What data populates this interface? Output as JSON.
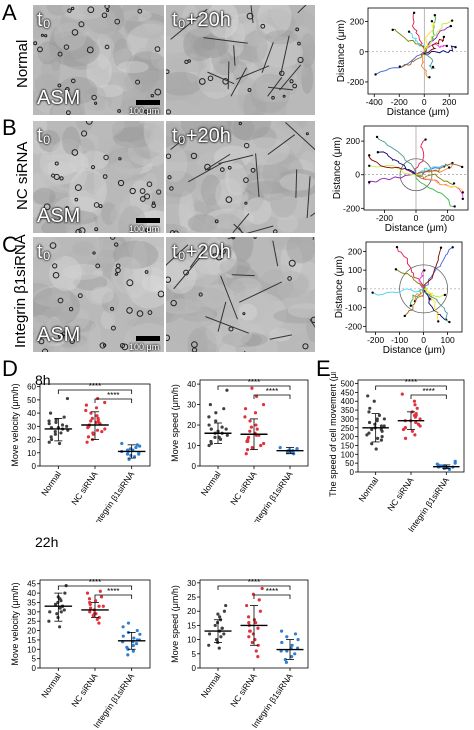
{
  "panels": {
    "A": {
      "letter": "A",
      "condition": "Normal",
      "t0": "t₀",
      "t20": "t₀+20h",
      "cell": "ASM",
      "scale": "100 μm"
    },
    "B": {
      "letter": "B",
      "condition": "NC siRNA",
      "t0": "t₀",
      "t20": "t₀+20h",
      "cell": "ASM",
      "scale": "100 μm"
    },
    "C": {
      "letter": "C",
      "condition": "Integrin β1siRNA",
      "t0": "t₀",
      "t20": "t₀+20h",
      "cell": "ASM",
      "scale": "100 μm"
    },
    "D": {
      "letter": "D",
      "time1": "8h",
      "time2": "22h"
    },
    "E": {
      "letter": "E"
    }
  },
  "significance": "****",
  "colors": {
    "normal": "#404040",
    "nc": "#e0323c",
    "integrin": "#2f7fd0",
    "mean": "#000000"
  },
  "chart_data": [
    {
      "id": "track-A",
      "type": "scatter",
      "xlabel": "Distance (μm)",
      "ylabel": "Distance (μm)",
      "xticks": [
        -400,
        -200,
        0,
        200
      ],
      "yticks": [
        -200,
        0,
        200
      ],
      "xlim": [
        -450,
        350
      ],
      "ylim": [
        -280,
        290
      ]
    },
    {
      "id": "track-B",
      "type": "scatter",
      "xlabel": "Distance (μm)",
      "ylabel": "Distance (μm)",
      "xticks": [
        -200,
        0,
        200
      ],
      "yticks": [
        -200,
        0,
        200
      ],
      "xlim": [
        -330,
        330
      ],
      "ylim": [
        -210,
        290
      ]
    },
    {
      "id": "track-C",
      "type": "scatter",
      "xlabel": "Distance (μm)",
      "ylabel": "Distance (μm)",
      "xticks": [
        -200,
        -100,
        0,
        100
      ],
      "yticks": [
        -200,
        -100,
        0,
        100,
        200
      ],
      "xlim": [
        -240,
        160
      ],
      "ylim": [
        -230,
        250
      ]
    },
    {
      "id": "D-velocity-8h",
      "type": "scatter",
      "title": "",
      "ylabel": "Move velocity (μm/h)",
      "categories": [
        "Normal",
        "NC siRNA",
        "Integrin β1siRNA"
      ],
      "yticks": [
        0,
        10,
        20,
        30,
        40,
        50,
        60
      ],
      "ylim": [
        0,
        62
      ],
      "means": [
        28,
        31,
        11
      ],
      "sd": [
        [
          19,
          36
        ],
        [
          20,
          41
        ],
        [
          6,
          16
        ]
      ],
      "points": [
        [
          18,
          20,
          22,
          25,
          26,
          27,
          28,
          29,
          30,
          31,
          32,
          33,
          34,
          35,
          37,
          40,
          51,
          17,
          24,
          29
        ],
        [
          18,
          22,
          24,
          26,
          28,
          29,
          30,
          31,
          32,
          33,
          34,
          35,
          36,
          38,
          40,
          42,
          44,
          46,
          48,
          51,
          25,
          27,
          30,
          33,
          20,
          36
        ],
        [
          5,
          7,
          8,
          9,
          10,
          11,
          12,
          13,
          14,
          15,
          16,
          17,
          9,
          11,
          12
        ]
      ]
    },
    {
      "id": "D-speed-8h",
      "type": "scatter",
      "ylabel": "Move speed  (μm/h)",
      "categories": [
        "Normal",
        "NC siRNA",
        "Integrin β1siRNA"
      ],
      "yticks": [
        0,
        10,
        20,
        30,
        40
      ],
      "ylim": [
        0,
        42
      ],
      "means": [
        16,
        15.5,
        7.5
      ],
      "sd": [
        [
          11,
          21
        ],
        [
          8,
          23
        ],
        [
          6,
          9
        ]
      ],
      "points": [
        [
          10,
          11,
          12,
          13,
          14,
          15,
          16,
          17,
          18,
          19,
          20,
          22,
          24,
          26,
          28,
          30,
          37,
          14,
          16,
          18
        ],
        [
          6,
          8,
          9,
          10,
          11,
          12,
          13,
          14,
          15,
          16,
          17,
          18,
          19,
          20,
          22,
          24,
          26,
          28,
          30,
          34,
          38,
          15,
          12
        ],
        [
          6,
          6.5,
          7,
          7.2,
          7.5,
          7.8,
          8,
          8.5,
          9,
          6.8,
          7.4
        ]
      ]
    },
    {
      "id": "E-speed",
      "type": "scatter",
      "ylabel": "The speed of cell movement  (μm/h)",
      "categories": [
        "Normal",
        "NC siRNA",
        "Integrin β1siRNA"
      ],
      "yticks": [
        0,
        50,
        100,
        150,
        200,
        250,
        300,
        350,
        400,
        450,
        500
      ],
      "ylim": [
        0,
        520
      ],
      "means": [
        250,
        290,
        30
      ],
      "sd": [
        [
          170,
          330
        ],
        [
          240,
          340
        ],
        [
          20,
          40
        ]
      ],
      "points": [
        [
          130,
          160,
          180,
          200,
          210,
          220,
          230,
          240,
          250,
          260,
          270,
          280,
          290,
          300,
          320,
          340,
          360,
          400,
          430,
          190,
          240,
          260,
          300
        ],
        [
          190,
          210,
          230,
          240,
          250,
          260,
          270,
          280,
          290,
          300,
          310,
          320,
          330,
          340,
          360,
          380,
          400,
          440,
          250,
          290,
          320
        ],
        [
          15,
          20,
          22,
          25,
          28,
          30,
          32,
          35,
          40,
          45,
          50,
          60,
          25,
          30,
          35,
          28
        ]
      ]
    },
    {
      "id": "D-velocity-22h",
      "type": "scatter",
      "ylabel": "Move velocity (μm/h)",
      "categories": [
        "Normal",
        "NC siRNA",
        "Integrin β1siRNA"
      ],
      "yticks": [
        0,
        5,
        10,
        15,
        20,
        25,
        30,
        35,
        40,
        45
      ],
      "ylim": [
        0,
        47
      ],
      "means": [
        33,
        31,
        14.5
      ],
      "sd": [
        [
          25,
          40
        ],
        [
          27,
          35
        ],
        [
          10,
          19
        ]
      ],
      "points": [
        [
          22,
          25,
          27,
          29,
          30,
          31,
          32,
          33,
          34,
          35,
          36,
          37,
          38,
          40,
          44,
          30,
          33
        ],
        [
          24,
          26,
          27,
          28,
          29,
          30,
          31,
          32,
          33,
          34,
          35,
          36,
          37,
          38,
          40,
          41,
          29,
          33
        ],
        [
          7,
          9,
          10,
          11,
          12,
          13,
          14,
          15,
          16,
          17,
          18,
          19,
          20,
          22,
          24,
          14,
          15
        ]
      ]
    },
    {
      "id": "D-speed-22h",
      "type": "scatter",
      "ylabel": "Move speed  (μm/h)",
      "categories": [
        "Normal",
        "NC siRNA",
        "Integrin β1siRNA"
      ],
      "yticks": [
        0,
        5,
        10,
        15,
        20,
        25,
        30
      ],
      "ylim": [
        0,
        31
      ],
      "means": [
        13,
        15,
        6.5
      ],
      "sd": [
        [
          9,
          17
        ],
        [
          8,
          22
        ],
        [
          3,
          10
        ]
      ],
      "points": [
        [
          7,
          8,
          9,
          10,
          11,
          12,
          13,
          14,
          15,
          16,
          17,
          18,
          19,
          20,
          22,
          12,
          14
        ],
        [
          4,
          6,
          8,
          9,
          10,
          11,
          12,
          13,
          14,
          15,
          16,
          17,
          18,
          20,
          22,
          24,
          26,
          28,
          13,
          16
        ],
        [
          2,
          3,
          4,
          5,
          6,
          7,
          8,
          9,
          10,
          11,
          12,
          13,
          6,
          7
        ]
      ]
    }
  ]
}
